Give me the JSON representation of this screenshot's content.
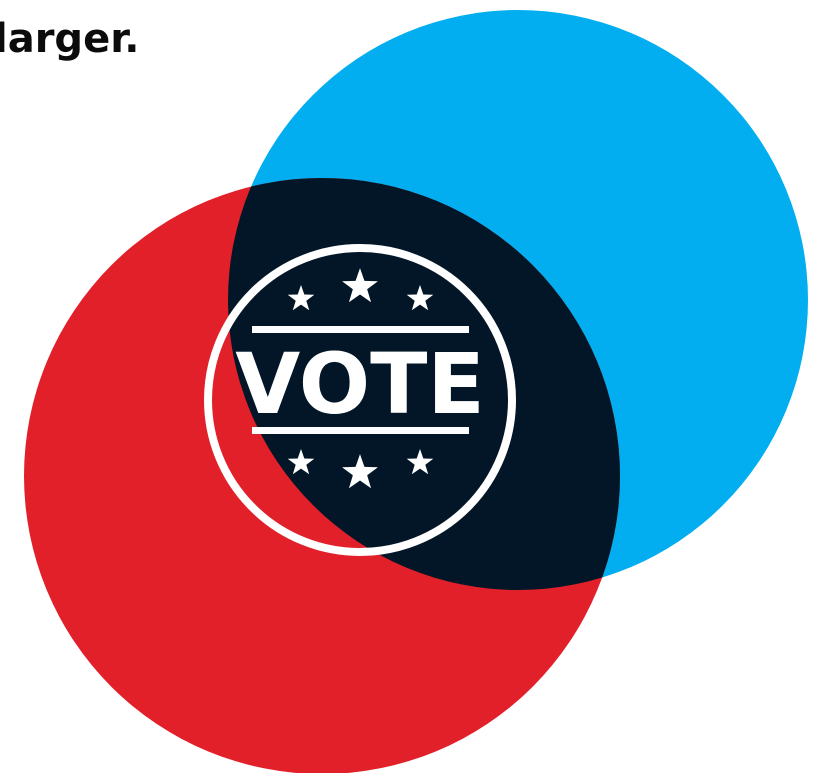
{
  "heading": "larger.",
  "badge": {
    "label": "VOTE"
  }
}
